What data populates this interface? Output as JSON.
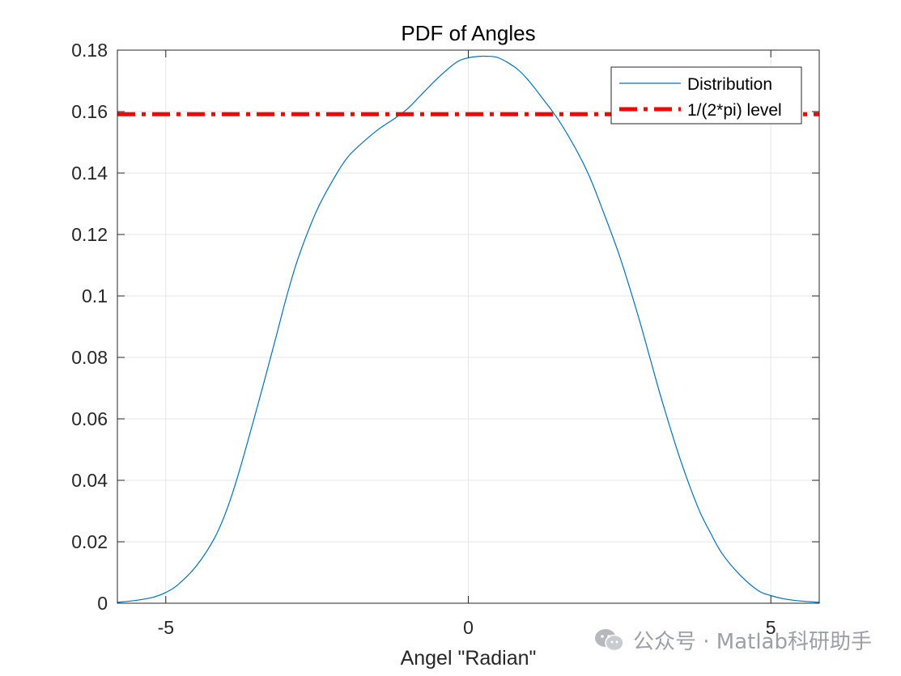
{
  "chart_data": {
    "type": "line",
    "title": "PDF of Angles",
    "xlabel": "Angel \"Radian\"",
    "ylabel": "",
    "xlim": [
      -5.8,
      5.8
    ],
    "ylim": [
      0,
      0.18
    ],
    "xticks": [
      -5,
      0,
      5
    ],
    "xtick_labels": [
      "-5",
      "0",
      "5"
    ],
    "yticks": [
      0,
      0.02,
      0.04,
      0.06,
      0.08,
      0.1,
      0.12,
      0.14,
      0.16,
      0.18
    ],
    "ytick_labels": [
      "0",
      "0.02",
      "0.04",
      "0.06",
      "0.08",
      "0.1",
      "0.12",
      "0.14",
      "0.16",
      "0.18"
    ],
    "grid": true,
    "legend_placement": "top-right",
    "series": [
      {
        "name": "Distribution",
        "color": "#0072BD",
        "style": "solid",
        "x": [
          -5.8,
          -5.5,
          -5.2,
          -5.0,
          -4.8,
          -4.5,
          -4.2,
          -4.0,
          -3.8,
          -3.5,
          -3.2,
          -3.0,
          -2.8,
          -2.5,
          -2.2,
          -2.0,
          -1.8,
          -1.5,
          -1.2,
          -1.0,
          -0.8,
          -0.5,
          -0.2,
          0.0,
          0.2,
          0.3,
          0.5,
          0.8,
          1.0,
          1.2,
          1.5,
          1.8,
          2.0,
          2.2,
          2.5,
          2.8,
          3.0,
          3.2,
          3.5,
          3.8,
          4.0,
          4.2,
          4.5,
          4.8,
          5.0,
          5.2,
          5.5,
          5.8
        ],
        "y": [
          0.0003,
          0.0009,
          0.002,
          0.0035,
          0.006,
          0.012,
          0.021,
          0.03,
          0.042,
          0.063,
          0.085,
          0.1,
          0.113,
          0.128,
          0.139,
          0.145,
          0.149,
          0.154,
          0.158,
          0.161,
          0.165,
          0.171,
          0.176,
          0.1775,
          0.178,
          0.178,
          0.1775,
          0.174,
          0.17,
          0.165,
          0.157,
          0.147,
          0.139,
          0.129,
          0.113,
          0.094,
          0.08,
          0.066,
          0.047,
          0.031,
          0.023,
          0.016,
          0.009,
          0.004,
          0.0025,
          0.0015,
          0.0007,
          0.0003
        ]
      },
      {
        "name": "1/(2*pi) level",
        "color": "#FF0000",
        "style": "dashdot",
        "x": [
          -5.8,
          5.8
        ],
        "y": [
          0.159155,
          0.159155
        ]
      }
    ]
  },
  "watermark": {
    "icon": "wechat-icon",
    "text": "公众号 · Matlab科研助手"
  }
}
